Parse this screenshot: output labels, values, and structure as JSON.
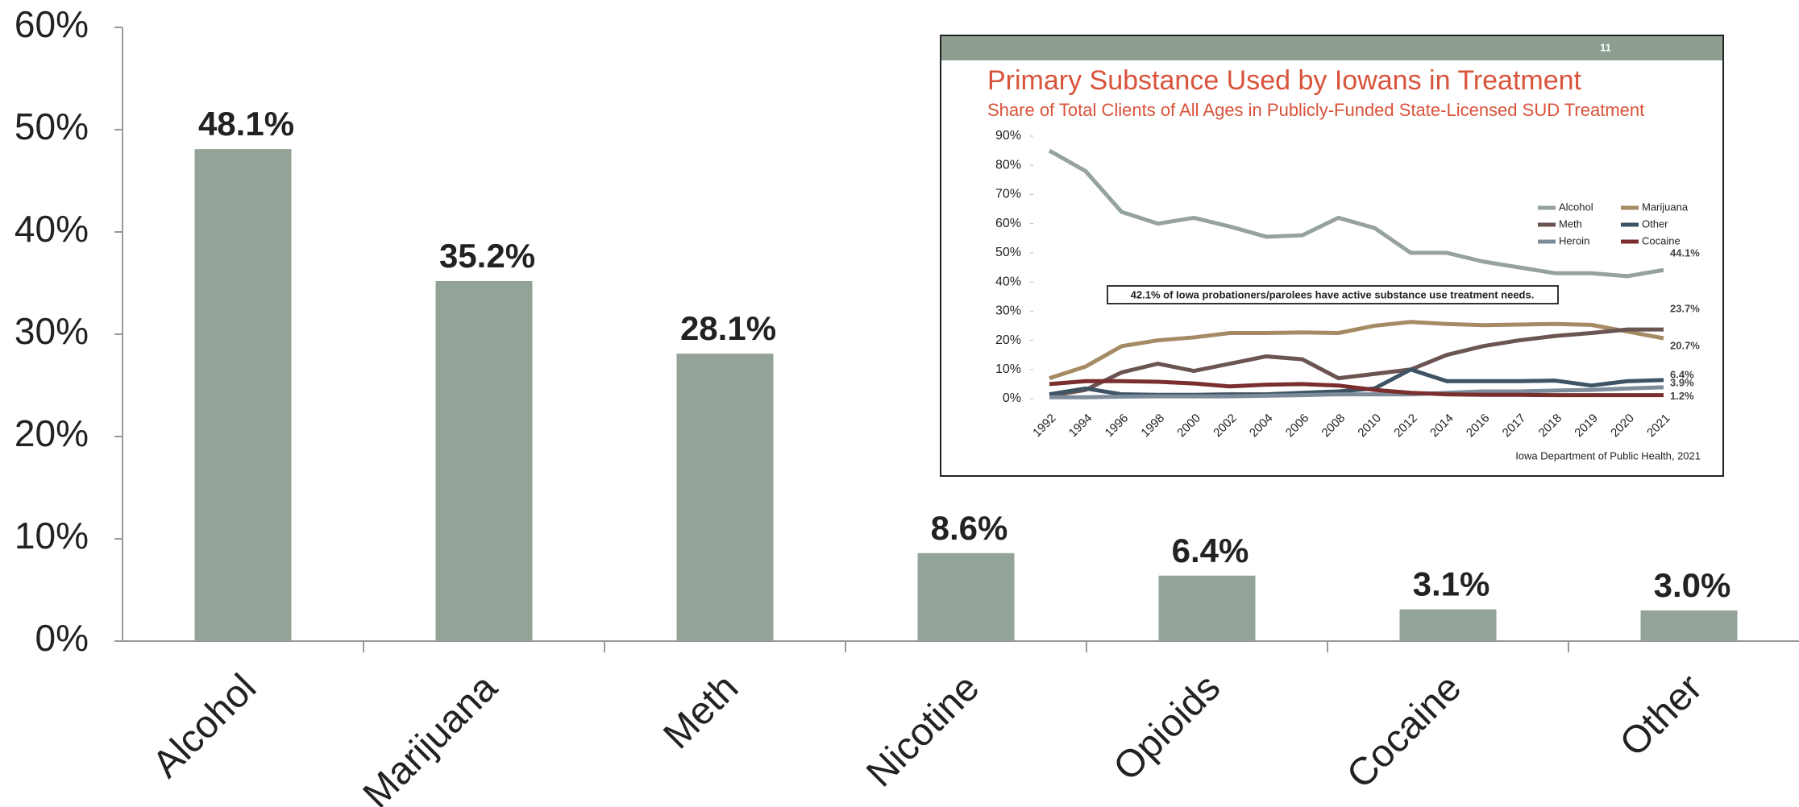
{
  "chart_data": [
    {
      "type": "bar",
      "categories": [
        "Alcohol",
        "Marijuana",
        "Meth",
        "Nicotine",
        "Opioids",
        "Cocaine",
        "Other"
      ],
      "values": [
        48.1,
        35.2,
        28.1,
        8.6,
        6.4,
        3.1,
        3.0
      ],
      "value_labels": [
        "48.1%",
        "35.2%",
        "28.1%",
        "8.6%",
        "6.4%",
        "3.1%",
        "3.0%"
      ],
      "color": "#93a398",
      "ylim": [
        0,
        60
      ],
      "yticks": [
        {
          "value": 0,
          "label": "0%"
        },
        {
          "value": 10,
          "label": "10%"
        },
        {
          "value": 20,
          "label": "20%"
        },
        {
          "value": 30,
          "label": "30%"
        },
        {
          "value": 40,
          "label": "40%"
        },
        {
          "value": 50,
          "label": "50%"
        },
        {
          "value": 60,
          "label": "60%"
        }
      ],
      "grid": false
    },
    {
      "type": "line",
      "page_number": "11",
      "title": "Primary Substance Used by Iowans in Treatment",
      "subtitle": "Share of Total Clients of All Ages in Publicly-Funded State-Licensed SUD Treatment",
      "annotation": "42.1% of Iowa probationers/parolees have active substance use treatment needs.",
      "source": "Iowa Department of Public Health, 2021",
      "categories": [
        "1992",
        "1994",
        "1996",
        "1998",
        "2000",
        "2002",
        "2004",
        "2006",
        "2008",
        "2010",
        "2012",
        "2014",
        "2016",
        "2017",
        "2018",
        "2019",
        "2020",
        "2021"
      ],
      "series": [
        {
          "name": "Alcohol",
          "color": "#95a39b",
          "values": [
            85,
            78,
            64,
            60,
            62,
            59,
            55.5,
            56,
            62,
            58.5,
            50,
            50,
            47,
            45,
            43,
            43,
            42,
            44.1
          ],
          "value_labels": [
            null,
            null,
            null,
            null,
            null,
            null,
            null,
            null,
            null,
            null,
            null,
            null,
            null,
            null,
            null,
            null,
            null,
            "44.1%"
          ]
        },
        {
          "name": "Marijuana",
          "color": "#a58b64",
          "values": [
            7,
            11,
            18,
            20,
            21,
            22.5,
            22.5,
            22.7,
            22.5,
            25,
            26.3,
            25.6,
            25.2,
            25.4,
            25.6,
            25.3,
            23,
            20.7
          ],
          "value_labels": [
            null,
            null,
            null,
            null,
            null,
            null,
            null,
            null,
            null,
            null,
            null,
            null,
            null,
            null,
            null,
            null,
            null,
            "20.7%"
          ]
        },
        {
          "name": "Meth",
          "color": "#6b5553",
          "values": [
            1,
            3,
            9,
            12,
            9.5,
            12,
            14.5,
            13.5,
            7,
            8.5,
            10,
            15,
            18,
            20,
            21.5,
            22.5,
            23.7,
            23.7
          ],
          "value_labels": [
            null,
            null,
            null,
            null,
            null,
            null,
            null,
            null,
            null,
            null,
            null,
            null,
            null,
            null,
            null,
            null,
            null,
            "23.7%"
          ]
        },
        {
          "name": "Other",
          "color": "#3e5464",
          "values": [
            1.5,
            3.5,
            1.5,
            1.3,
            1.3,
            1.5,
            1.5,
            2,
            2.5,
            3.5,
            10,
            6,
            6,
            6,
            6.2,
            4.5,
            6,
            6.4
          ],
          "value_labels": [
            null,
            null,
            null,
            null,
            null,
            null,
            null,
            null,
            null,
            null,
            null,
            null,
            null,
            null,
            null,
            null,
            null,
            "6.4%"
          ]
        },
        {
          "name": "Heroin",
          "color": "#7d8c9a",
          "values": [
            0.5,
            0.5,
            0.7,
            0.8,
            0.8,
            0.8,
            1,
            1.2,
            1.5,
            1.5,
            1.5,
            2,
            2.5,
            2.5,
            2.8,
            3,
            3.5,
            3.9
          ],
          "value_labels": [
            null,
            null,
            null,
            null,
            null,
            null,
            null,
            null,
            null,
            null,
            null,
            null,
            null,
            null,
            null,
            null,
            null,
            "3.9%"
          ]
        },
        {
          "name": "Cocaine",
          "color": "#7a2e2e",
          "values": [
            5,
            6,
            6,
            5.8,
            5.2,
            4.2,
            4.8,
            5,
            4.5,
            3,
            2,
            1.5,
            1.3,
            1.3,
            1.2,
            1.2,
            1.2,
            1.2
          ],
          "value_labels": [
            null,
            null,
            null,
            null,
            null,
            null,
            null,
            null,
            null,
            null,
            null,
            null,
            null,
            null,
            null,
            null,
            null,
            "1.2%"
          ]
        }
      ],
      "ylim": [
        0,
        90
      ],
      "yticks": [
        {
          "value": 0,
          "label": "0%"
        },
        {
          "value": 10,
          "label": "10%"
        },
        {
          "value": 20,
          "label": "20%"
        },
        {
          "value": 30,
          "label": "30%"
        },
        {
          "value": 40,
          "label": "40%"
        },
        {
          "value": 50,
          "label": "50%"
        },
        {
          "value": 60,
          "label": "60%"
        },
        {
          "value": 70,
          "label": "70%"
        },
        {
          "value": 80,
          "label": "80%"
        },
        {
          "value": 90,
          "label": "90%"
        }
      ],
      "legend": "right"
    }
  ]
}
